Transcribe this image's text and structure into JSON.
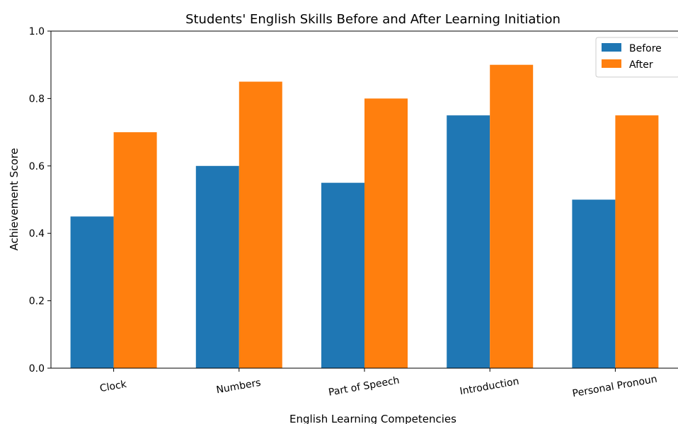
{
  "chart_data": {
    "type": "bar",
    "title": "Students' English Skills Before and After Learning Initiation",
    "xlabel": "English Learning Competencies",
    "ylabel": "Achievement Score",
    "ylim": [
      0,
      1.0
    ],
    "yticks": [
      "0.0",
      "0.2",
      "0.4",
      "0.6",
      "0.8",
      "1.0"
    ],
    "categories": [
      "Clock",
      "Numbers",
      "Part of Speech",
      "Introduction",
      "Personal Pronoun"
    ],
    "series": [
      {
        "name": "Before",
        "color": "#1f77b4",
        "values": [
          0.45,
          0.6,
          0.55,
          0.75,
          0.5
        ]
      },
      {
        "name": "After",
        "color": "#ff7f0e",
        "values": [
          0.7,
          0.85,
          0.8,
          0.9,
          0.75
        ]
      }
    ],
    "legend_position": "top-right",
    "grid": false
  }
}
